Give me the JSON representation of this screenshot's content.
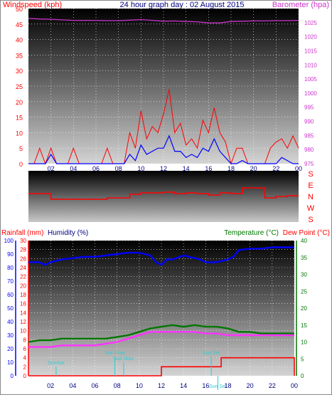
{
  "colors": {
    "windspeed": "#ff0000",
    "windgust": "#ff0000",
    "winddir": "#ff0000",
    "barometer": "#cc33cc",
    "humidity": "#0000ff",
    "rainfall": "#ff0000",
    "temperature": "#007700",
    "dewpoint": "#ff33ff",
    "grid": "#ffffff",
    "sun": "#33cccc",
    "frame": "#888888"
  },
  "chart_data": [
    {
      "type": "line",
      "title": "24 hour graph day : 02 August 2015",
      "ylabel_left": "Windspeed (kph)",
      "ylabel_right": "Barometer (hpa)",
      "x_ticks": [
        "02",
        "04",
        "06",
        "08",
        "10",
        "12",
        "14",
        "16",
        "18",
        "20",
        "22",
        "00"
      ],
      "ylim_left": [
        0,
        50
      ],
      "y_ticks_left": [
        "0",
        "5",
        "10",
        "15",
        "20",
        "25",
        "30",
        "35",
        "40",
        "45",
        "50"
      ],
      "ylim_right": [
        975,
        1030
      ],
      "y_ticks_right": [
        "975",
        "980",
        "985",
        "990",
        "995",
        "1000",
        "1005",
        "1010",
        "1015",
        "1020",
        "1025"
      ],
      "grid": true,
      "series": [
        {
          "name": "Windspeed",
          "axis": "left",
          "x": [
            0,
            0.5,
            1,
            1.5,
            2,
            2.5,
            3,
            3.5,
            4,
            4.5,
            5,
            5.5,
            6,
            6.5,
            7,
            7.5,
            8,
            8.5,
            9,
            9.5,
            10,
            10.5,
            11,
            11.5,
            12,
            12.5,
            13,
            13.5,
            14,
            14.5,
            15,
            15.5,
            16,
            16.5,
            17,
            17.5,
            18,
            18.5,
            19,
            19.5,
            20,
            20.5,
            21,
            21.5,
            22,
            22.5,
            23,
            23.5,
            24
          ],
          "values": [
            0,
            0,
            0,
            0,
            3,
            0,
            0,
            0,
            0,
            0,
            0,
            0,
            0,
            0,
            0,
            0,
            0,
            0,
            3,
            1,
            6,
            3,
            4,
            5,
            5,
            9,
            4,
            4,
            2,
            3,
            2,
            5,
            4,
            8,
            4,
            2,
            0,
            0,
            1,
            0,
            0,
            0,
            0,
            0,
            0,
            2,
            1,
            0,
            0
          ]
        },
        {
          "name": "Windgust",
          "axis": "left",
          "x": [
            0,
            0.5,
            1,
            1.5,
            2,
            2.5,
            3,
            3.5,
            4,
            4.5,
            5,
            5.5,
            6,
            6.5,
            7,
            7.5,
            8,
            8.5,
            9,
            9.5,
            10,
            10.5,
            11,
            11.5,
            12,
            12.5,
            13,
            13.5,
            14,
            14.5,
            15,
            15.5,
            16,
            16.5,
            17,
            17.5,
            18,
            18.5,
            19,
            19.5,
            20,
            20.5,
            21,
            21.5,
            22,
            22.5,
            23,
            23.5,
            24
          ],
          "values": [
            0,
            0,
            5,
            0,
            5,
            0,
            0,
            0,
            5,
            0,
            0,
            0,
            0,
            0,
            5,
            0,
            0,
            0,
            10,
            5,
            17,
            8,
            12,
            10,
            16,
            24,
            10,
            13,
            6,
            8,
            5,
            14,
            10,
            18,
            10,
            7,
            0,
            5,
            5,
            0,
            0,
            0,
            0,
            5,
            7,
            8,
            5,
            9,
            5
          ]
        },
        {
          "name": "Barometer",
          "axis": "right",
          "x": [
            0,
            1,
            2,
            3,
            4,
            5,
            6,
            7,
            8,
            9,
            10,
            11,
            12,
            13,
            14,
            15,
            16,
            17,
            18,
            19,
            20,
            21,
            22,
            23,
            24
          ],
          "values": [
            1026.5,
            1026.3,
            1026.2,
            1026,
            1025.8,
            1025.8,
            1025.8,
            1025.7,
            1025.7,
            1025.9,
            1026.1,
            1025.8,
            1025.5,
            1025.6,
            1025.4,
            1025.3,
            1024.9,
            1024.9,
            1025.4,
            1025.5,
            1025.6,
            1025.6,
            1025.7,
            1025.7,
            1025.8
          ]
        }
      ]
    },
    {
      "type": "line",
      "title": "",
      "ylabel_right_letters": [
        "S",
        "E",
        "N",
        "W",
        "S"
      ],
      "grid": false,
      "series": [
        {
          "name": "Wind direction",
          "x": [
            0,
            1,
            2,
            3,
            4,
            5,
            6,
            7,
            8,
            9,
            10,
            11,
            12,
            13,
            14,
            15,
            16,
            17,
            18,
            19,
            20,
            21,
            22,
            23,
            24
          ],
          "values": [
            200,
            200,
            160,
            160,
            160,
            160,
            160,
            170,
            170,
            195,
            205,
            205,
            210,
            200,
            205,
            200,
            190,
            205,
            200,
            240,
            240,
            170,
            180,
            185,
            185
          ]
        }
      ]
    },
    {
      "type": "line",
      "title": "",
      "ylabel_left_1": "Rainfall (mm)",
      "ylabel_left_2": "Humidity (%)",
      "ylabel_right_1": "Temperature (°C)",
      "ylabel_right_2": "Dew Point (°C)",
      "x_ticks": [
        "02",
        "04",
        "06",
        "08",
        "10",
        "12",
        "14",
        "16",
        "18",
        "20",
        "22",
        "00"
      ],
      "rain_ticks": [
        "0",
        "2",
        "4",
        "6",
        "8",
        "10",
        "12",
        "14",
        "16",
        "18",
        "20",
        "22",
        "24",
        "26",
        "28",
        "30"
      ],
      "ylim_rain": [
        0,
        30
      ],
      "humidity_ticks": [
        "0",
        "10",
        "20",
        "30",
        "40",
        "50",
        "60",
        "70",
        "80",
        "90",
        "100"
      ],
      "ylim_humidity": [
        0,
        100
      ],
      "temp_ticks": [
        "0",
        "5",
        "10",
        "15",
        "20",
        "25",
        "30",
        "35",
        "40"
      ],
      "ylim_temp": [
        0,
        40
      ],
      "grid": true,
      "annotations": [
        {
          "label": "Sunrise",
          "x": 2.5
        },
        {
          "label": "Sun Rise",
          "x": 7.8
        },
        {
          "label": "Sun Rise",
          "x": 8.6
        },
        {
          "label": "Sun Set",
          "x": 16.5
        },
        {
          "label": "Sun Set",
          "x": 17.1
        }
      ],
      "series": [
        {
          "name": "Humidity",
          "axis": "humidity",
          "x": [
            0,
            1,
            1.5,
            2,
            3,
            4,
            5,
            6,
            7,
            8,
            9,
            10,
            11,
            11.5,
            12,
            12.5,
            13,
            14,
            15,
            15.5,
            16,
            17,
            18,
            18.5,
            19,
            20,
            21,
            22,
            23,
            24
          ],
          "values": [
            84,
            84,
            82,
            84,
            86,
            87,
            88,
            88,
            89,
            90,
            91,
            91,
            89,
            84,
            82,
            86,
            86,
            89,
            87,
            86,
            84,
            84,
            86,
            88,
            93,
            94,
            94,
            95,
            95,
            95
          ],
          "unit": "%"
        },
        {
          "name": "Temperature",
          "axis": "temp",
          "x": [
            0,
            1,
            2,
            3,
            4,
            5,
            6,
            7,
            8,
            9,
            10,
            11,
            12,
            13,
            14,
            15,
            16,
            17,
            18,
            19,
            20,
            21,
            22,
            23,
            24
          ],
          "values": [
            10,
            10.5,
            10.5,
            11,
            11,
            11,
            11,
            11,
            11.5,
            12,
            13,
            14,
            14.5,
            15,
            14.5,
            15,
            14.5,
            14.5,
            14,
            13,
            13,
            12.5,
            12.5,
            12.5,
            12.5
          ]
        },
        {
          "name": "Dew Point",
          "axis": "temp",
          "x": [
            0,
            1,
            2,
            3,
            4,
            5,
            6,
            7,
            8,
            9,
            10,
            11,
            12,
            13,
            14,
            15,
            16,
            17,
            18,
            19,
            20,
            21,
            22,
            23,
            24
          ],
          "values": [
            8.5,
            8.5,
            8.5,
            9,
            9,
            9,
            9,
            9.5,
            10,
            11,
            12,
            13,
            13,
            13,
            13,
            13,
            12.5,
            12.5,
            12,
            12,
            12,
            12,
            12,
            12,
            12
          ]
        },
        {
          "name": "Rainfall",
          "axis": "rain",
          "x": [
            0,
            1,
            2,
            3,
            4,
            5,
            6,
            7,
            8,
            9,
            10,
            11,
            11.9,
            12,
            13,
            14,
            15,
            16,
            16.6,
            17,
            17.4,
            18,
            19,
            20,
            21,
            22,
            23,
            23.8,
            24
          ],
          "values": [
            0,
            0,
            0,
            0,
            0,
            0,
            0,
            0,
            0,
            0,
            0,
            0,
            0,
            2,
            2,
            2,
            2,
            2,
            2,
            2,
            4,
            4,
            4,
            4,
            4,
            4,
            4,
            4,
            0
          ]
        }
      ]
    }
  ]
}
